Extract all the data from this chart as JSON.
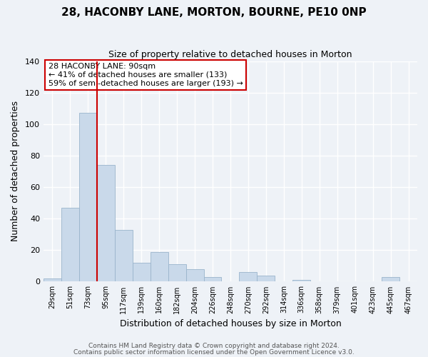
{
  "title": "28, HACONBY LANE, MORTON, BOURNE, PE10 0NP",
  "subtitle": "Size of property relative to detached houses in Morton",
  "xlabel": "Distribution of detached houses by size in Morton",
  "ylabel": "Number of detached properties",
  "bar_color": "#c9d9ea",
  "bar_edge_color": "#9ab4cc",
  "background_color": "#eef2f7",
  "grid_color": "#ffffff",
  "categories": [
    "29sqm",
    "51sqm",
    "73sqm",
    "95sqm",
    "117sqm",
    "139sqm",
    "160sqm",
    "182sqm",
    "204sqm",
    "226sqm",
    "248sqm",
    "270sqm",
    "292sqm",
    "314sqm",
    "336sqm",
    "358sqm",
    "379sqm",
    "401sqm",
    "423sqm",
    "445sqm",
    "467sqm"
  ],
  "values": [
    2,
    47,
    107,
    74,
    33,
    12,
    19,
    11,
    8,
    3,
    0,
    6,
    4,
    0,
    1,
    0,
    0,
    0,
    0,
    3,
    0
  ],
  "vline_color": "#cc0000",
  "annotation_title": "28 HACONBY LANE: 90sqm",
  "annotation_line1": "← 41% of detached houses are smaller (133)",
  "annotation_line2": "59% of semi-detached houses are larger (193) →",
  "annotation_box_color": "#ffffff",
  "annotation_box_edge_color": "#cc0000",
  "ylim": [
    0,
    140
  ],
  "yticks": [
    0,
    20,
    40,
    60,
    80,
    100,
    120,
    140
  ],
  "footer1": "Contains HM Land Registry data © Crown copyright and database right 2024.",
  "footer2": "Contains public sector information licensed under the Open Government Licence v3.0."
}
